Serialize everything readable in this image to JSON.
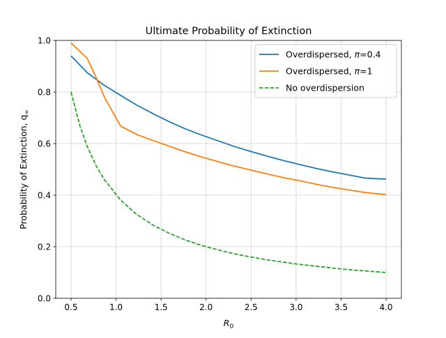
{
  "chart_data": {
    "type": "line",
    "title": "Ultimate Probability of Extinction",
    "xlabel": {
      "base": "R",
      "sub": "0"
    },
    "ylabel": {
      "base": "Probability of Extinction, q",
      "sub": "∞"
    },
    "xlim": [
      0.33,
      4.17
    ],
    "ylim": [
      0.0,
      1.0
    ],
    "xticks": [
      0.5,
      1.0,
      1.5,
      2.0,
      2.5,
      3.0,
      3.5,
      4.0
    ],
    "xtick_labels": [
      "0.5",
      "1.0",
      "1.5",
      "2.0",
      "2.5",
      "3.0",
      "3.5",
      "4.0"
    ],
    "yticks": [
      0.0,
      0.2,
      0.4,
      0.6,
      0.8,
      1.0
    ],
    "ytick_labels": [
      "0.0",
      "0.2",
      "0.4",
      "0.6",
      "0.8",
      "1.0"
    ],
    "grid": true,
    "legend_position": "top-right",
    "series": [
      {
        "name": "Overdispersed, π=0.4",
        "legend": {
          "prefix": "Overdispersed, ",
          "symbol": "π",
          "suffix": "=0.4"
        },
        "color": "#1f77b4",
        "dash": "solid",
        "x": [
          0.5,
          0.68,
          0.86,
          1.05,
          1.23,
          1.41,
          1.59,
          1.77,
          1.95,
          2.14,
          2.32,
          2.5,
          2.68,
          2.86,
          3.05,
          3.23,
          3.41,
          3.59,
          3.77,
          4.0
        ],
        "y": [
          0.94,
          0.875,
          0.828,
          0.787,
          0.749,
          0.716,
          0.685,
          0.657,
          0.633,
          0.61,
          0.588,
          0.569,
          0.551,
          0.534,
          0.518,
          0.503,
          0.49,
          0.478,
          0.466,
          0.462
        ]
      },
      {
        "name": "Overdispersed, π=1",
        "legend": {
          "prefix": "Overdispersed, ",
          "symbol": "π",
          "suffix": "=1"
        },
        "color": "#ff7f0e",
        "dash": "solid",
        "x": [
          0.5,
          0.68,
          0.78,
          0.87,
          1.05,
          1.23,
          1.41,
          1.59,
          1.77,
          1.95,
          2.14,
          2.32,
          2.5,
          2.68,
          2.86,
          3.05,
          3.23,
          3.41,
          3.59,
          3.77,
          4.0
        ],
        "y": [
          0.99,
          0.93,
          0.855,
          0.78,
          0.668,
          0.635,
          0.612,
          0.59,
          0.568,
          0.548,
          0.529,
          0.512,
          0.497,
          0.482,
          0.468,
          0.455,
          0.442,
          0.43,
          0.42,
          0.41,
          0.402
        ]
      },
      {
        "name": "No overdispersion",
        "legend": {
          "prefix": "No overdispersion",
          "symbol": "",
          "suffix": ""
        },
        "color": "#2ca02c",
        "dash": "dashed",
        "x": [
          0.5,
          0.6,
          0.68,
          0.78,
          0.87,
          1.05,
          1.23,
          1.41,
          1.59,
          1.77,
          1.95,
          2.14,
          2.32,
          2.5,
          2.68,
          2.86,
          3.05,
          3.23,
          3.41,
          3.59,
          3.77,
          4.0
        ],
        "y": [
          0.8,
          0.667,
          0.588,
          0.513,
          0.46,
          0.381,
          0.325,
          0.284,
          0.252,
          0.226,
          0.205,
          0.187,
          0.172,
          0.16,
          0.149,
          0.14,
          0.131,
          0.124,
          0.117,
          0.111,
          0.106,
          0.1
        ]
      }
    ]
  }
}
